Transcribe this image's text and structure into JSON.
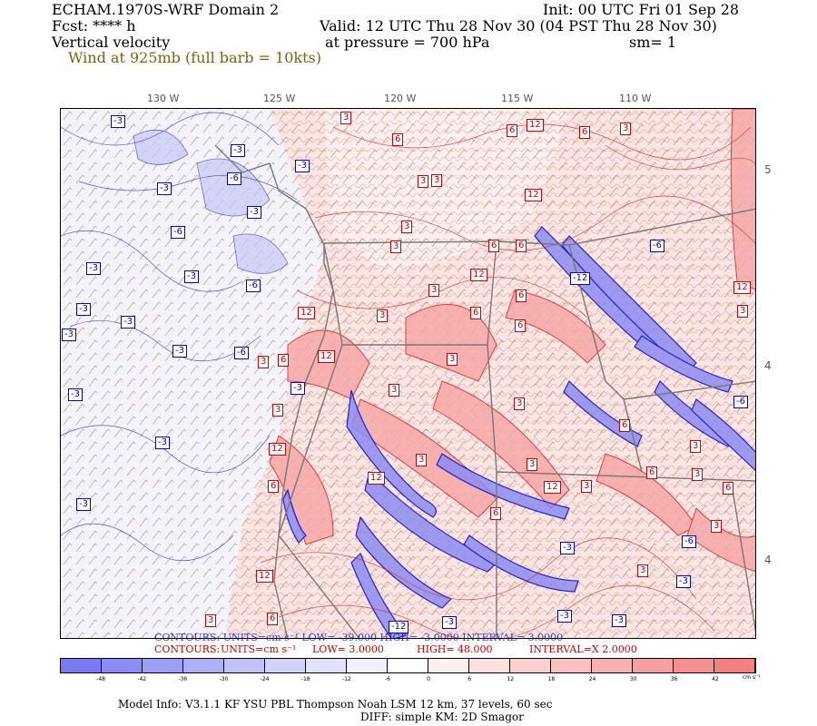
{
  "header": {
    "model": "ECHAM.1970S-WRF Domain 2",
    "fcst": "Fcst: **** h",
    "field": "Vertical velocity",
    "wind": "Wind at 925mb (full barb = 10kts)",
    "init": "Init: 00 UTC Fri 01 Sep 28",
    "valid": "Valid: 12 UTC Thu 28 Nov 30 (04 PST Thu 28 Nov 30)",
    "pressure": "at pressure =  700 hPa",
    "sm": "sm= 1"
  },
  "axes": {
    "lon_labels": [
      "130 W",
      "125 W",
      "120 W",
      "115 W",
      "110 W"
    ],
    "lat_labels": [
      "5",
      "4",
      "4"
    ]
  },
  "contour_labels": {
    "positive": [
      "3",
      "6",
      "12",
      "6",
      "3",
      "6",
      "3",
      "12",
      "3",
      "6",
      "3",
      "6",
      "12",
      "6",
      "3",
      "3",
      "6",
      "12",
      "3",
      "3",
      "6",
      "12",
      "3",
      "6",
      "3",
      "12",
      "3",
      "3",
      "6",
      "3",
      "12",
      "6",
      "3",
      "3",
      "6",
      "3",
      "12",
      "6",
      "12",
      "3",
      "3",
      "6",
      "3",
      "12",
      "6",
      "3",
      "3"
    ],
    "negative": [
      "-3",
      "-3",
      "-3",
      "-6",
      "-3",
      "-3",
      "-6",
      "-3",
      "-3",
      "-6",
      "-3",
      "-3",
      "-3",
      "-12",
      "-3",
      "-6",
      "-3",
      "-3",
      "-6",
      "-3",
      "-3",
      "-6",
      "-3",
      "-3",
      "-6",
      "-3",
      "-12",
      "-3",
      "-3"
    ]
  },
  "contours": {
    "neg_line": "CONTOURS:  UNITS=cm s⁻¹  LOW= -39.000        HIGH= -3.0000        INTERVAL= 3.0000",
    "pos_line_label": "CONTOURS:",
    "pos_units": "UNITS=cm s⁻¹",
    "pos_low": "LOW=  3.0000",
    "pos_high": "HIGH=  48.000",
    "pos_interval": "INTERVAL=X  2.0000"
  },
  "colorbar": {
    "ticks": [
      "-48",
      "-42",
      "-36",
      "-30",
      "-24",
      "-18",
      "-12",
      "-6",
      "0",
      "6",
      "12",
      "18",
      "24",
      "30",
      "36",
      "42"
    ],
    "units": "cm s⁻¹",
    "colors": [
      "#7a7af2",
      "#8c8cf4",
      "#9e9ef6",
      "#b0b0f8",
      "#c2c2fa",
      "#d2d2fb",
      "#e2e2fd",
      "#f0f0fe",
      "#ffffff",
      "#fff0f0",
      "#fde0e0",
      "#fcd0d0",
      "#fbc0c0",
      "#f9b0b0",
      "#f8a0a0",
      "#f69090",
      "#f48080"
    ]
  },
  "footer": {
    "model_info": "Model Info: V3.1.1    KF       YSU PBL   Thompson     Noah LSM  12 km,    37 levels,    60 sec",
    "diff": "DIFF: simple KM: 2D Smagor"
  }
}
